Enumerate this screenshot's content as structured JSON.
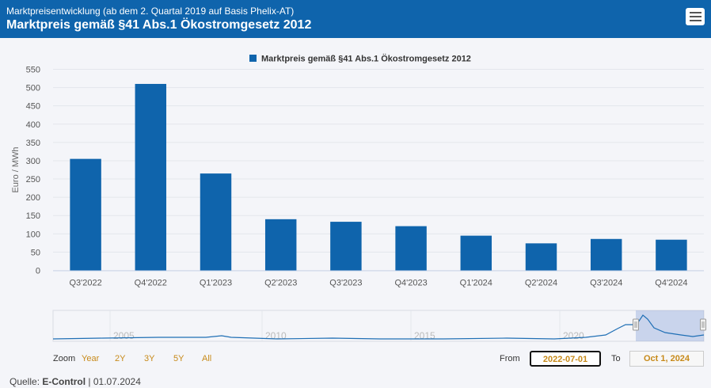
{
  "header": {
    "subtitle": "Marktpreisentwicklung (ab dem 2. Quartal 2019 auf Basis Phelix-AT)",
    "title": "Marktpreis gemäß §41 Abs.1 Ökostromgesetz 2012",
    "menu_icon": "hamburger-menu-icon"
  },
  "chart_data": {
    "type": "bar",
    "title": "",
    "legend": "Marktpreis gemäß §41 Abs.1 Ökostromgesetz 2012",
    "legend_position": "top-center",
    "ylabel": "Euro / MWh",
    "xlabel": "",
    "ylim": [
      0,
      550
    ],
    "yticks": [
      0,
      50,
      100,
      150,
      200,
      250,
      300,
      350,
      400,
      450,
      500,
      550
    ],
    "grid": true,
    "color": "#0f64ac",
    "categories": [
      "Q3'2022",
      "Q4'2022",
      "Q1'2023",
      "Q2'2023",
      "Q3'2023",
      "Q4'2023",
      "Q1'2024",
      "Q2'2024",
      "Q3'2024",
      "Q4'2024"
    ],
    "values": [
      305,
      510,
      265,
      140,
      133,
      121,
      95,
      74,
      86,
      84
    ]
  },
  "navigator": {
    "year_labels": [
      "2005",
      "2010",
      "2015",
      "2020"
    ]
  },
  "range_selector": {
    "zoom_label": "Zoom",
    "buttons": [
      "Year",
      "2Y",
      "3Y",
      "5Y",
      "All"
    ],
    "from_label": "From",
    "from_value": "2022-07-01",
    "to_label": "To",
    "to_value": "Oct 1, 2024"
  },
  "source": {
    "label": "Quelle:",
    "name": "E-Control",
    "date": "01.07.2024"
  }
}
